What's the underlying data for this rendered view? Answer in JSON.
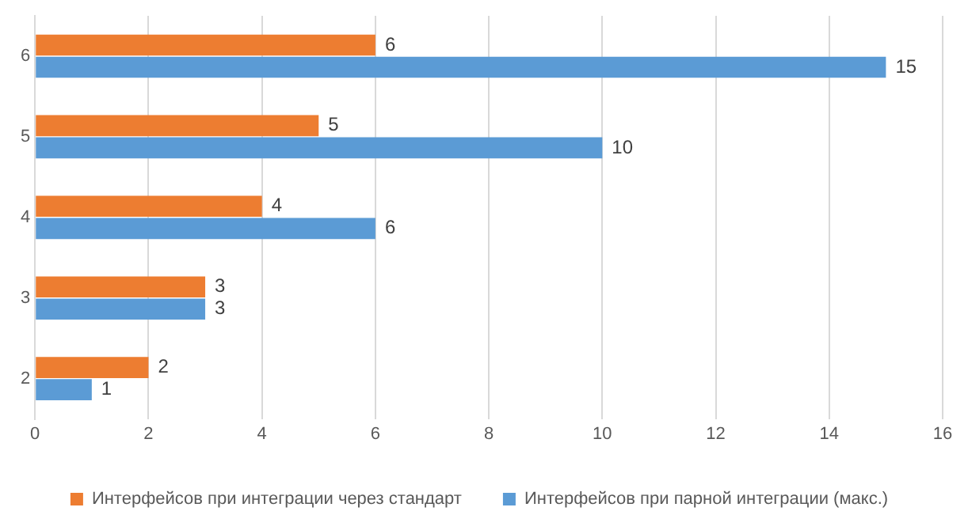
{
  "chart_data": {
    "type": "bar",
    "orientation": "horizontal",
    "categories": [
      "6",
      "5",
      "4",
      "3",
      "2"
    ],
    "series": [
      {
        "name": "Интерфейсов при интеграции через стандарт",
        "color": "#ed7d31",
        "values": [
          6,
          5,
          4,
          3,
          2
        ]
      },
      {
        "name": "Интерфейсов при парной интеграции (макс.)",
        "color": "#5b9bd5",
        "values": [
          15,
          10,
          6,
          3,
          1
        ]
      }
    ],
    "xlim": [
      0,
      16
    ],
    "xticks": [
      0,
      2,
      4,
      6,
      8,
      10,
      12,
      14,
      16
    ],
    "grid": "x",
    "legend": "bottom",
    "data_labels": true
  }
}
